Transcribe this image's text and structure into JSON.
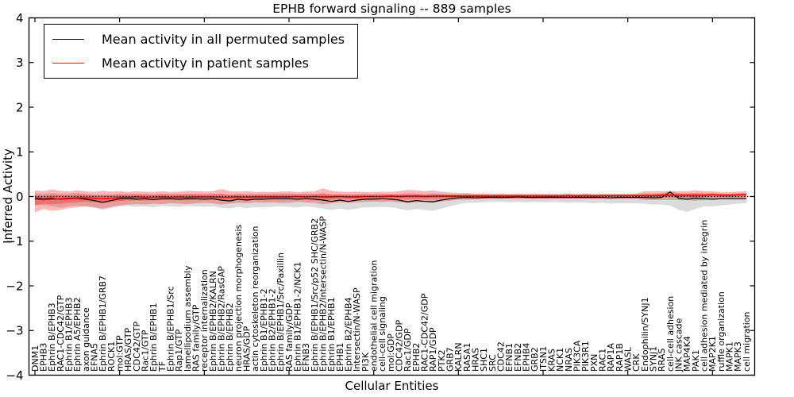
{
  "chart_data": {
    "type": "line",
    "title": "EPHB forward signaling -- 889 samples",
    "xlabel": "Cellular Entities",
    "ylabel": "Inferred Activity",
    "ylim": [
      -4,
      4
    ],
    "y_ticks": [
      -4,
      -3,
      -2,
      -1,
      0,
      1,
      2,
      3,
      4
    ],
    "grid": false,
    "legend_position": "upper left",
    "zero_line_y": 0,
    "categories": [
      "DNM1",
      "EPHB3",
      "Ephrin B/EPHB3",
      "RAC1-CDC42/GTP",
      "Ephrin B1/EPHB3",
      "Ephrin A5/EPHB2",
      "axon guidance",
      "EFNA5",
      "Ephrin B/EPHB1/GRB7",
      "ROCK1",
      "mol:GTP",
      "HRAS/GTP",
      "CDC42/GTP",
      "Rac1/GTP",
      "Ephrin B/EPHB1",
      "TF",
      "Ephrin B/EPHB1/Src",
      "Rap1/GTP",
      "lamellipodium assembly",
      "RAS family/GTP",
      "receptor internalization",
      "Ephrin B/EPHB2/KALRN",
      "Ephrin B/EPHB2/RasGAP",
      "Ephrin B/EPHB2",
      "neuron projection morphogenesis",
      "HRAS/GDP",
      "actin cytoskeleton reorganization",
      "Ephrin B1/EPHB1-2",
      "Ephrin B2/EPHB1-2",
      "Ephrin B/EPHB1/Src/Paxillin",
      "RAS family/GDP",
      "Ephrin B1/EPHB1-2/NCK1",
      "EFNB3",
      "Ephrin B/EPHB1/Src/p52 SHC/GRB2",
      "Ephrin B/EPHB2/Intersectin/N-WASP",
      "Ephrin B1/EPHB1",
      "EPHB1",
      "Ephrin B2/EPHB4",
      "Intersectin/N-WASP",
      "PI3K",
      "endothelial cell migration",
      "cell-cell signaling",
      "mol:GDP",
      "CDC42/GDP",
      "Rac1/GDP",
      "EPHB2",
      "RAC1-CDC42/GDP",
      "RAP1/GDP",
      "PTK2",
      "GRB7",
      "KALRN",
      "RASA1",
      "HRAS",
      "SHC1",
      "SRC",
      "CDC42",
      "EFNB1",
      "EFNB2",
      "EPHB4",
      "GRB2",
      "ITSN1",
      "KRAS",
      "NCK1",
      "NRAS",
      "PIK3CA",
      "PIK3R1",
      "PXN",
      "RAC1",
      "RAP1A",
      "RAP1B",
      "WASL",
      "CRK",
      "Endophilin/SYNJ1",
      "SYNJ1",
      "RRAS",
      "cell-cell adhesion",
      "JNK cascade",
      "MAP4K4",
      "PAK1",
      "cell adhesion mediated by integrin",
      "MAP2K1",
      "ruffle organization",
      "MAPK1",
      "MAPK3",
      "cell migration"
    ],
    "series": [
      {
        "name": "Mean activity in all permuted samples",
        "color": "#000000",
        "band_color": "rgba(110,110,110,0.25)",
        "values": [
          -0.03,
          -0.05,
          -0.04,
          -0.06,
          -0.05,
          -0.04,
          -0.06,
          -0.09,
          -0.13,
          -0.09,
          -0.05,
          -0.04,
          -0.06,
          -0.05,
          -0.07,
          -0.05,
          -0.05,
          -0.06,
          -0.05,
          -0.05,
          -0.06,
          -0.05,
          -0.08,
          -0.1,
          -0.06,
          -0.08,
          -0.06,
          -0.06,
          -0.05,
          -0.05,
          -0.05,
          -0.06,
          -0.05,
          -0.06,
          -0.08,
          -0.11,
          -0.08,
          -0.11,
          -0.08,
          -0.06,
          -0.06,
          -0.05,
          -0.06,
          -0.08,
          -0.12,
          -0.09,
          -0.11,
          -0.12,
          -0.08,
          -0.05,
          -0.03,
          -0.02,
          -0.03,
          -0.02,
          -0.02,
          -0.02,
          -0.02,
          -0.01,
          -0.02,
          -0.02,
          -0.02,
          -0.02,
          -0.02,
          -0.02,
          -0.02,
          -0.02,
          -0.02,
          -0.02,
          -0.03,
          -0.02,
          -0.02,
          -0.02,
          -0.02,
          -0.03,
          -0.02,
          0.1,
          -0.04,
          -0.06,
          -0.04,
          -0.05,
          -0.06,
          -0.05,
          -0.05,
          -0.05,
          -0.05
        ],
        "band_upper": [
          0.08,
          0.07,
          0.08,
          0.06,
          0.07,
          0.08,
          0.06,
          0.05,
          0.04,
          0.05,
          0.06,
          0.07,
          0.06,
          0.07,
          0.05,
          0.07,
          0.06,
          0.06,
          0.07,
          0.06,
          0.06,
          0.07,
          0.05,
          0.04,
          0.06,
          0.05,
          0.06,
          0.06,
          0.07,
          0.07,
          0.07,
          0.06,
          0.07,
          0.06,
          0.05,
          0.04,
          0.05,
          0.04,
          0.05,
          0.06,
          0.05,
          0.06,
          0.05,
          0.05,
          0.03,
          0.04,
          0.04,
          0.03,
          0.04,
          0.05,
          0.05,
          0.06,
          0.05,
          0.05,
          0.05,
          0.05,
          0.05,
          0.05,
          0.05,
          0.05,
          0.05,
          0.05,
          0.05,
          0.05,
          0.05,
          0.05,
          0.05,
          0.05,
          0.04,
          0.05,
          0.05,
          0.05,
          0.05,
          0.05,
          0.06,
          0.14,
          0.06,
          0.05,
          0.05,
          0.05,
          0.04,
          0.04,
          0.04,
          0.04,
          0.04
        ],
        "band_lower": [
          -0.18,
          -0.2,
          -0.22,
          -0.25,
          -0.22,
          -0.2,
          -0.22,
          -0.25,
          -0.3,
          -0.26,
          -0.22,
          -0.21,
          -0.23,
          -0.22,
          -0.24,
          -0.21,
          -0.22,
          -0.23,
          -0.21,
          -0.22,
          -0.23,
          -0.22,
          -0.25,
          -0.27,
          -0.23,
          -0.26,
          -0.24,
          -0.24,
          -0.23,
          -0.22,
          -0.23,
          -0.24,
          -0.22,
          -0.24,
          -0.27,
          -0.3,
          -0.27,
          -0.3,
          -0.27,
          -0.24,
          -0.24,
          -0.23,
          -0.24,
          -0.27,
          -0.31,
          -0.28,
          -0.3,
          -0.32,
          -0.27,
          -0.22,
          -0.17,
          -0.14,
          -0.14,
          -0.13,
          -0.12,
          -0.12,
          -0.13,
          -0.12,
          -0.13,
          -0.12,
          -0.13,
          -0.12,
          -0.13,
          -0.14,
          -0.13,
          -0.14,
          -0.15,
          -0.14,
          -0.16,
          -0.15,
          -0.15,
          -0.15,
          -0.16,
          -0.18,
          -0.18,
          -0.2,
          -0.3,
          -0.34,
          -0.28,
          -0.22,
          -0.22,
          -0.2,
          -0.18,
          -0.16,
          -0.15
        ]
      },
      {
        "name": "Mean activity in patient samples",
        "color": "#ff0000",
        "band_color": "rgba(255,0,0,0.28)",
        "values": [
          -0.06,
          -0.07,
          -0.06,
          -0.05,
          -0.04,
          -0.03,
          -0.03,
          -0.04,
          -0.05,
          -0.04,
          -0.02,
          -0.02,
          -0.01,
          -0.02,
          -0.02,
          -0.01,
          -0.02,
          -0.01,
          -0.02,
          -0.01,
          -0.01,
          -0.01,
          -0.02,
          -0.02,
          -0.01,
          -0.02,
          -0.01,
          -0.01,
          -0.01,
          -0.01,
          -0.01,
          0.0,
          -0.01,
          0.0,
          -0.01,
          -0.01,
          0.0,
          -0.01,
          -0.01,
          0.0,
          0.0,
          0.0,
          0.01,
          0.0,
          0.01,
          0.01,
          0.0,
          0.01,
          0.01,
          0.01,
          0.01,
          0.01,
          0.01,
          0.01,
          0.01,
          0.01,
          0.01,
          0.01,
          0.01,
          0.01,
          0.01,
          0.01,
          0.01,
          0.02,
          0.01,
          0.02,
          0.01,
          0.02,
          0.02,
          0.02,
          0.02,
          0.02,
          0.02,
          0.02,
          0.03,
          0.03,
          0.03,
          0.03,
          0.03,
          0.03,
          0.04,
          0.03,
          0.03,
          0.04,
          0.04
        ],
        "band_upper": [
          0.14,
          0.12,
          0.16,
          0.13,
          0.11,
          0.14,
          0.12,
          0.1,
          0.13,
          0.11,
          0.12,
          0.1,
          0.12,
          0.11,
          0.1,
          0.12,
          0.1,
          0.11,
          0.13,
          0.12,
          0.11,
          0.12,
          0.17,
          0.12,
          0.11,
          0.12,
          0.1,
          0.11,
          0.1,
          0.11,
          0.12,
          0.1,
          0.11,
          0.12,
          0.18,
          0.13,
          0.11,
          0.1,
          0.11,
          0.1,
          0.1,
          0.11,
          0.1,
          0.12,
          0.15,
          0.14,
          0.12,
          0.14,
          0.11,
          0.09,
          0.08,
          0.08,
          0.07,
          0.07,
          0.06,
          0.07,
          0.06,
          0.07,
          0.06,
          0.07,
          0.06,
          0.06,
          0.06,
          0.07,
          0.06,
          0.07,
          0.06,
          0.06,
          0.06,
          0.06,
          0.06,
          0.07,
          0.12,
          0.12,
          0.12,
          0.12,
          0.12,
          0.12,
          0.14,
          0.12,
          0.12,
          0.1,
          0.1,
          0.11,
          0.12
        ],
        "band_lower": [
          -0.36,
          -0.28,
          -0.32,
          -0.3,
          -0.26,
          -0.24,
          -0.22,
          -0.24,
          -0.27,
          -0.23,
          -0.2,
          -0.18,
          -0.17,
          -0.18,
          -0.16,
          -0.17,
          -0.15,
          -0.16,
          -0.17,
          -0.15,
          -0.14,
          -0.15,
          -0.18,
          -0.16,
          -0.14,
          -0.15,
          -0.13,
          -0.14,
          -0.13,
          -0.14,
          -0.14,
          -0.12,
          -0.13,
          -0.14,
          -0.18,
          -0.15,
          -0.13,
          -0.14,
          -0.13,
          -0.12,
          -0.11,
          -0.12,
          -0.11,
          -0.13,
          -0.14,
          -0.13,
          -0.12,
          -0.13,
          -0.11,
          -0.09,
          -0.07,
          -0.07,
          -0.06,
          -0.06,
          -0.05,
          -0.06,
          -0.05,
          -0.06,
          -0.05,
          -0.06,
          -0.05,
          -0.05,
          -0.05,
          -0.05,
          -0.05,
          -0.05,
          -0.05,
          -0.05,
          -0.05,
          -0.05,
          -0.05,
          -0.05,
          -0.08,
          -0.08,
          -0.08,
          -0.08,
          -0.08,
          -0.08,
          -0.09,
          -0.08,
          -0.06,
          -0.05,
          -0.05,
          -0.05,
          -0.04
        ]
      }
    ]
  }
}
